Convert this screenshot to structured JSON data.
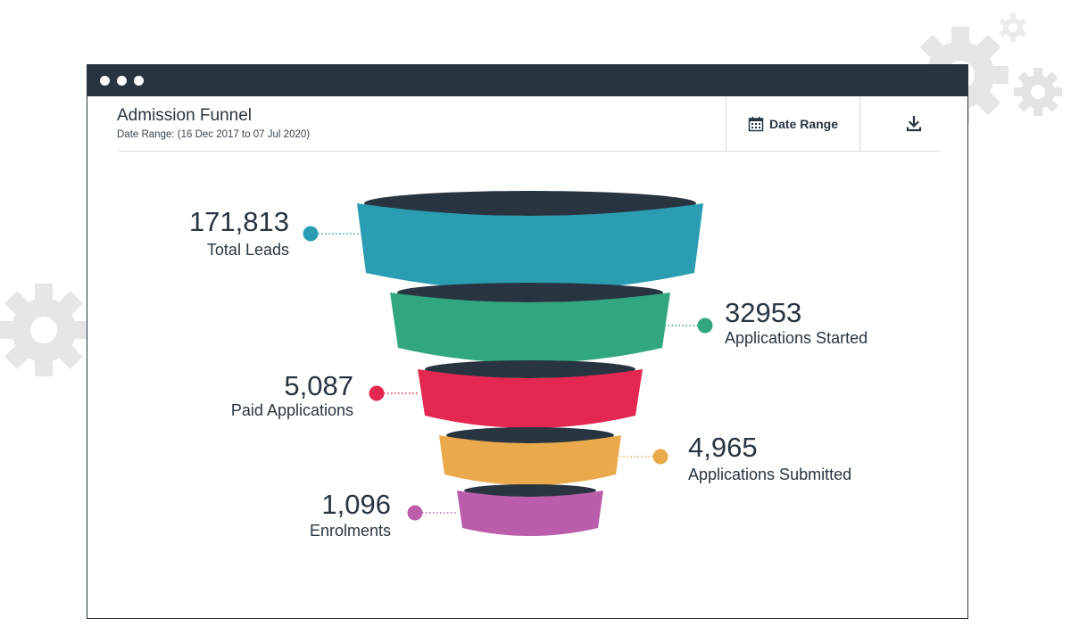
{
  "window": {
    "title": "Admission Funnel",
    "subtitle": "Date Range: (16 Dec 2017 to 07 Jul 2020)"
  },
  "toolbar": {
    "date_range_label": "Date Range",
    "date_range_icon": "calendar-icon",
    "download_icon": "download-icon"
  },
  "colors": {
    "titlebar": "#283541",
    "funnel_rim": "#283541",
    "gear": "#e6e6e6"
  },
  "chart_data": {
    "type": "funnel",
    "title": "Admission Funnel",
    "stages": [
      {
        "label": "Total Leads",
        "value": 171813,
        "display": "171,813",
        "color": "#2b9db2",
        "side": "left"
      },
      {
        "label": "Applications Started",
        "value": 32953,
        "display": "32953",
        "color": "#31a780",
        "side": "right"
      },
      {
        "label": "Paid Applications",
        "value": 5087,
        "display": "5,087",
        "color": "#e32750",
        "side": "left"
      },
      {
        "label": "Applications Submitted",
        "value": 4965,
        "display": "4,965",
        "color": "#eaaa4c",
        "side": "right"
      },
      {
        "label": "Enrolments",
        "value": 1096,
        "display": "1,096",
        "color": "#bb5dab",
        "side": "left"
      }
    ]
  }
}
